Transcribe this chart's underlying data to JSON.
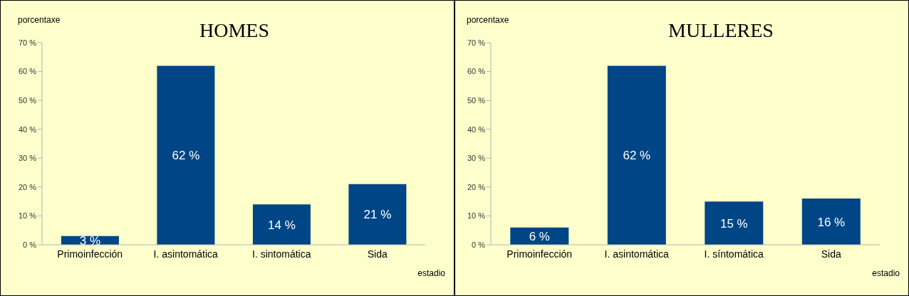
{
  "chart_data": [
    {
      "type": "bar",
      "title": "HOMES",
      "ylabel": "porcentaxe",
      "xlabel": "estadio",
      "categories": [
        "Primoinfección",
        "I. asintomática",
        "I. sintomática",
        "Sida"
      ],
      "values": [
        3,
        62,
        14,
        21
      ],
      "value_labels": [
        "3 %",
        "62 %",
        "14 %",
        "21 %"
      ],
      "color": "#004586",
      "ylim": [
        0,
        70
      ],
      "yticks": [
        {
          "value": 0,
          "label": "0 %"
        },
        {
          "value": 10,
          "label": "10 %"
        },
        {
          "value": 20,
          "label": "20 %"
        },
        {
          "value": 30,
          "label": "30 %"
        },
        {
          "value": 40,
          "label": "40 %"
        },
        {
          "value": 50,
          "label": "50 %"
        },
        {
          "value": 60,
          "label": "60 %"
        },
        {
          "value": 70,
          "label": "70 %"
        }
      ],
      "grid": false,
      "legend": false
    },
    {
      "type": "bar",
      "title": "MULLERES",
      "ylabel": "porcentaxe",
      "xlabel": "estadio",
      "categories": [
        "Primoinfección",
        "I. asintomática",
        "I. síntomática",
        "Sida"
      ],
      "values": [
        6,
        62,
        15,
        16
      ],
      "value_labels": [
        "6 %",
        "62 %",
        "15 %",
        "16 %"
      ],
      "color": "#004586",
      "ylim": [
        0,
        70
      ],
      "yticks": [
        {
          "value": 0,
          "label": "0 %"
        },
        {
          "value": 10,
          "label": "10 %"
        },
        {
          "value": 20,
          "label": "20 %"
        },
        {
          "value": 30,
          "label": "30 %"
        },
        {
          "value": 40,
          "label": "40 %"
        },
        {
          "value": 50,
          "label": "50 %"
        },
        {
          "value": 60,
          "label": "60 %"
        },
        {
          "value": 70,
          "label": "70 %"
        }
      ],
      "grid": false,
      "legend": false
    }
  ]
}
